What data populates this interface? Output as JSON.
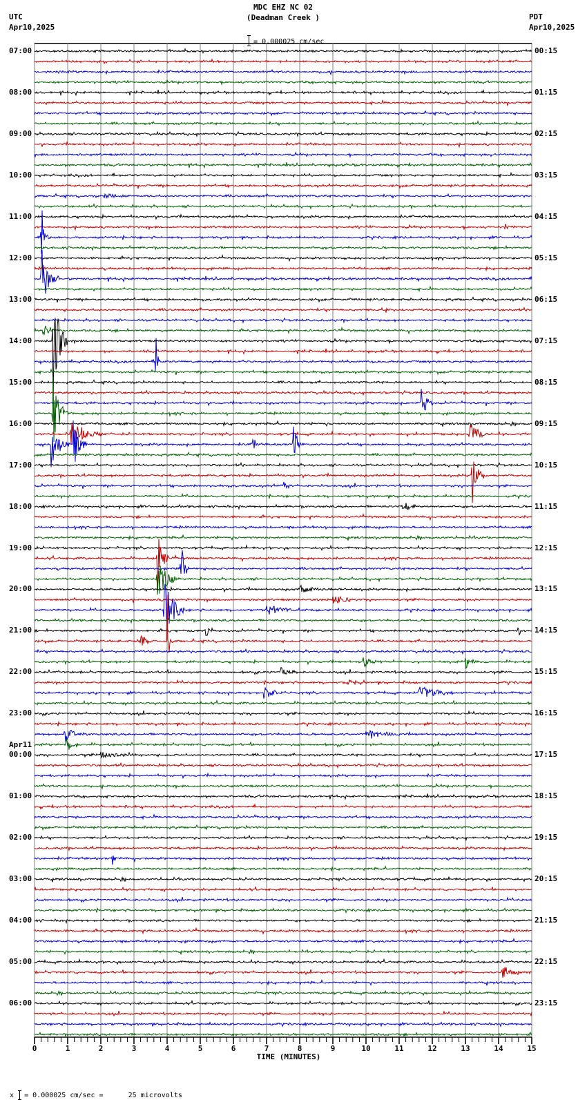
{
  "header": {
    "title": "MDC EHZ NC 02",
    "subtitle": "(Deadman Creek )",
    "scale_text": "= 0.000025 cm/sec",
    "left_tz": "UTC",
    "left_date": "Apr10,2025",
    "right_tz": "PDT",
    "right_date": "Apr10,2025"
  },
  "footer": {
    "prefix": "x",
    "text": "= 0.000025 cm/sec =      25 microvolts"
  },
  "colors": {
    "trace_cycle": [
      "#000000",
      "#c00000",
      "#0000d0",
      "#006000"
    ],
    "grid": "#808080",
    "frame": "#000000"
  },
  "chart_data": {
    "type": "line",
    "title": "MDC EHZ NC 02 (Deadman Creek )",
    "subtitle": "Helicorder seismogram, 24 hours, 15-minute traces",
    "xlabel": "TIME (MINUTES)",
    "ylabel": "",
    "xlim": [
      0,
      15
    ],
    "x_ticks": [
      0,
      1,
      2,
      3,
      4,
      5,
      6,
      7,
      8,
      9,
      10,
      11,
      12,
      13,
      14,
      15
    ],
    "minor_ticks_per_minute": 5,
    "grid": true,
    "amplitude_scale": "0.000025 cm/sec = 25 microvolts",
    "traces_per_hour": 4,
    "trace_count": 96,
    "left_axis_labels": [
      {
        "row": 0,
        "label": "07:00"
      },
      {
        "row": 4,
        "label": "08:00"
      },
      {
        "row": 8,
        "label": "09:00"
      },
      {
        "row": 12,
        "label": "10:00"
      },
      {
        "row": 16,
        "label": "11:00"
      },
      {
        "row": 20,
        "label": "12:00"
      },
      {
        "row": 24,
        "label": "13:00"
      },
      {
        "row": 28,
        "label": "14:00"
      },
      {
        "row": 32,
        "label": "15:00"
      },
      {
        "row": 36,
        "label": "16:00"
      },
      {
        "row": 40,
        "label": "17:00"
      },
      {
        "row": 44,
        "label": "18:00"
      },
      {
        "row": 48,
        "label": "19:00"
      },
      {
        "row": 52,
        "label": "20:00"
      },
      {
        "row": 56,
        "label": "21:00"
      },
      {
        "row": 60,
        "label": "22:00"
      },
      {
        "row": 64,
        "label": "23:00"
      },
      {
        "row": 68,
        "label": "00:00",
        "date": "Apr11"
      },
      {
        "row": 72,
        "label": "01:00"
      },
      {
        "row": 76,
        "label": "02:00"
      },
      {
        "row": 80,
        "label": "03:00"
      },
      {
        "row": 84,
        "label": "04:00"
      },
      {
        "row": 88,
        "label": "05:00"
      },
      {
        "row": 92,
        "label": "06:00"
      }
    ],
    "right_axis_labels": [
      "00:15",
      "01:15",
      "02:15",
      "03:15",
      "04:15",
      "05:15",
      "06:15",
      "07:15",
      "08:15",
      "09:15",
      "10:15",
      "11:15",
      "12:15",
      "13:15",
      "14:15",
      "15:15",
      "16:15",
      "17:15",
      "18:15",
      "19:15",
      "20:15",
      "21:15",
      "22:15",
      "23:15"
    ],
    "events": [
      {
        "row": 14,
        "minute": 2.1,
        "amp": 3,
        "dur": 1.5
      },
      {
        "row": 14,
        "minute": 3.4,
        "amp": 4,
        "dur": 0.1
      },
      {
        "row": 17,
        "minute": 14.2,
        "amp": 8,
        "dur": 0.3
      },
      {
        "row": 18,
        "minute": 0.2,
        "amp": 40,
        "dur": 0.2
      },
      {
        "row": 22,
        "minute": 0.2,
        "amp": 45,
        "dur": 0.5
      },
      {
        "row": 25,
        "minute": 10.6,
        "amp": 4,
        "dur": 0.1
      },
      {
        "row": 27,
        "minute": 0.25,
        "amp": 30,
        "dur": 0.3
      },
      {
        "row": 28,
        "minute": 0.55,
        "amp": 90,
        "dur": 0.4
      },
      {
        "row": 30,
        "minute": 3.65,
        "amp": 50,
        "dur": 0.1
      },
      {
        "row": 34,
        "minute": 11.65,
        "amp": 40,
        "dur": 0.3
      },
      {
        "row": 35,
        "minute": 0.55,
        "amp": 60,
        "dur": 0.4
      },
      {
        "row": 37,
        "minute": 1.1,
        "amp": 20,
        "dur": 1.0
      },
      {
        "row": 37,
        "minute": 13.1,
        "amp": 25,
        "dur": 0.5
      },
      {
        "row": 38,
        "minute": 0.5,
        "amp": 35,
        "dur": 0.5
      },
      {
        "row": 38,
        "minute": 6.6,
        "amp": 25,
        "dur": 0.1
      },
      {
        "row": 38,
        "minute": 7.8,
        "amp": 30,
        "dur": 0.3
      },
      {
        "row": 38,
        "minute": 1.15,
        "amp": 40,
        "dur": 0.4
      },
      {
        "row": 41,
        "minute": 13.2,
        "amp": 60,
        "dur": 0.3
      },
      {
        "row": 42,
        "minute": 7.5,
        "amp": 8,
        "dur": 0.3
      },
      {
        "row": 44,
        "minute": 11.1,
        "amp": 8,
        "dur": 0.6
      },
      {
        "row": 49,
        "minute": 3.7,
        "amp": 50,
        "dur": 0.3
      },
      {
        "row": 50,
        "minute": 4.4,
        "amp": 60,
        "dur": 0.2
      },
      {
        "row": 51,
        "minute": 3.7,
        "amp": 30,
        "dur": 0.6
      },
      {
        "row": 52,
        "minute": 8.0,
        "amp": 6,
        "dur": 1.2
      },
      {
        "row": 53,
        "minute": 9.0,
        "amp": 8,
        "dur": 1.0
      },
      {
        "row": 54,
        "minute": 3.9,
        "amp": 60,
        "dur": 0.6
      },
      {
        "row": 54,
        "minute": 7.0,
        "amp": 8,
        "dur": 1.2
      },
      {
        "row": 56,
        "minute": 5.15,
        "amp": 14,
        "dur": 0.2
      },
      {
        "row": 56,
        "minute": 14.6,
        "amp": 14,
        "dur": 0.1
      },
      {
        "row": 57,
        "minute": 3.2,
        "amp": 9,
        "dur": 0.5
      },
      {
        "row": 57,
        "minute": 4.0,
        "amp": 80,
        "dur": 0.1
      },
      {
        "row": 59,
        "minute": 9.9,
        "amp": 10,
        "dur": 0.6
      },
      {
        "row": 59,
        "minute": 13.0,
        "amp": 10,
        "dur": 0.5
      },
      {
        "row": 60,
        "minute": 7.4,
        "amp": 8,
        "dur": 0.6
      },
      {
        "row": 61,
        "minute": 9.4,
        "amp": 6,
        "dur": 0.6
      },
      {
        "row": 62,
        "minute": 6.9,
        "amp": 10,
        "dur": 0.8
      },
      {
        "row": 62,
        "minute": 11.6,
        "amp": 14,
        "dur": 1.0
      },
      {
        "row": 66,
        "minute": 0.9,
        "amp": 14,
        "dur": 0.6
      },
      {
        "row": 66,
        "minute": 10.0,
        "amp": 8,
        "dur": 1.0
      },
      {
        "row": 67,
        "minute": 0.95,
        "amp": 12,
        "dur": 0.4
      },
      {
        "row": 68,
        "minute": 2.0,
        "amp": 5,
        "dur": 1.5
      },
      {
        "row": 78,
        "minute": 2.35,
        "amp": 10,
        "dur": 0.2
      },
      {
        "row": 89,
        "minute": 14.1,
        "amp": 10,
        "dur": 0.8
      }
    ]
  }
}
